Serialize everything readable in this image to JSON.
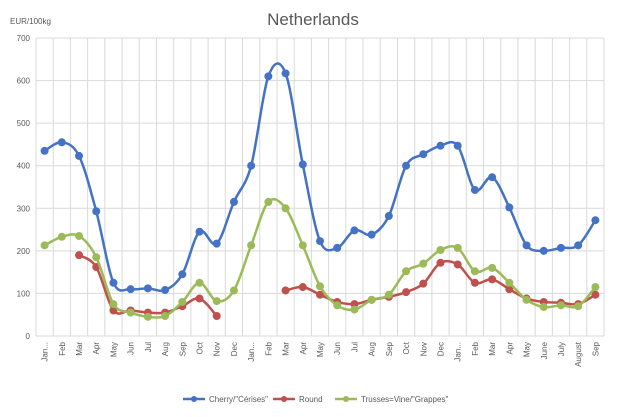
{
  "chart_data": {
    "type": "line",
    "title": "Netherlands",
    "ylabel": "EUR/100kg",
    "xlabel": "",
    "ylim": [
      0,
      700
    ],
    "yticks": [
      0,
      100,
      200,
      300,
      400,
      500,
      600,
      700
    ],
    "grid": true,
    "legend": "bottom",
    "categories": [
      "Jan...",
      "Feb",
      "Mar",
      "Apr",
      "May",
      "Jun",
      "Jul",
      "Aug",
      "Sep",
      "Oct",
      "Nov",
      "Dec",
      "Jan...",
      "Feb",
      "Mar",
      "Apr",
      "May",
      "Jun",
      "Jul",
      "Aug",
      "Sep",
      "Oct",
      "Nov",
      "Dec",
      "Jan...",
      "Feb",
      "Mar",
      "Apr",
      "May",
      "June",
      "July",
      "August",
      "Sep"
    ],
    "series": [
      {
        "name": "Cherry/\"Cérises\"",
        "color": "#4472C4",
        "values": [
          435,
          455,
          423,
          293,
          125,
          110,
          112,
          108,
          145,
          245,
          217,
          315,
          400,
          610,
          617,
          403,
          223,
          207,
          248,
          238,
          282,
          400,
          427,
          447,
          447,
          343,
          373,
          302,
          213,
          200,
          207,
          213,
          272
        ]
      },
      {
        "name": "Round",
        "color": "#C0504D",
        "values": [
          null,
          null,
          190,
          162,
          60,
          60,
          55,
          55,
          70,
          88,
          47,
          null,
          null,
          null,
          107,
          115,
          97,
          80,
          75,
          85,
          92,
          103,
          123,
          172,
          168,
          125,
          133,
          110,
          88,
          80,
          78,
          75,
          97
        ]
      },
      {
        "name": "Trusses=Vine/\"Grappes\"",
        "color": "#9BBB59",
        "values": [
          213,
          233,
          235,
          185,
          75,
          55,
          45,
          47,
          80,
          125,
          82,
          107,
          213,
          315,
          300,
          213,
          117,
          72,
          62,
          85,
          97,
          152,
          170,
          202,
          207,
          152,
          160,
          125,
          85,
          68,
          72,
          70,
          115
        ]
      }
    ]
  }
}
